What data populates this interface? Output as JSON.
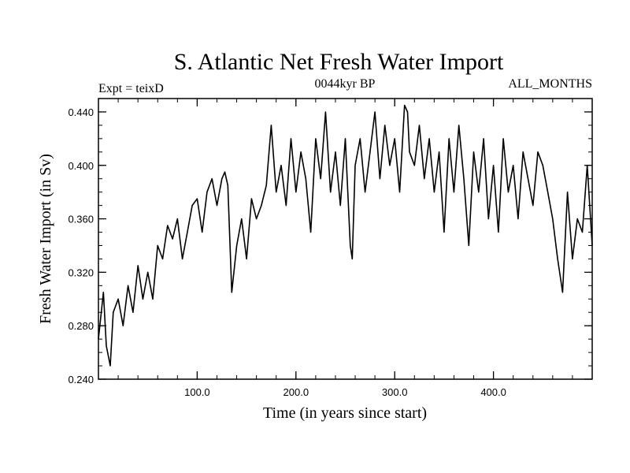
{
  "chart_data": {
    "type": "line",
    "title": "S. Atlantic Net Fresh Water Import",
    "subtitle_left": "Expt = teixD",
    "subtitle_center": "0044kyr BP",
    "subtitle_right": "ALL_MONTHS",
    "xlabel": "Time (in years since start)",
    "ylabel": "Fresh Water Import (in Sv)",
    "xlim": [
      0,
      500
    ],
    "ylim": [
      0.24,
      0.45
    ],
    "x_ticks": [
      100,
      200,
      300,
      400
    ],
    "x_tick_labels": [
      "100.0",
      "200.0",
      "300.0",
      "400.0"
    ],
    "y_ticks": [
      0.24,
      0.28,
      0.32,
      0.36,
      0.4,
      0.44
    ],
    "y_tick_labels": [
      "0.240",
      "0.280",
      "0.320",
      "0.360",
      "0.400",
      "0.440"
    ],
    "x_minor_step": 20,
    "y_minor_step": 0.01,
    "line_color": "#000000",
    "series": [
      {
        "name": "Net Fresh Water Import",
        "x": [
          0,
          5,
          8,
          12,
          15,
          20,
          25,
          30,
          35,
          40,
          45,
          50,
          55,
          60,
          65,
          70,
          75,
          80,
          85,
          90,
          95,
          100,
          105,
          110,
          115,
          120,
          125,
          128,
          131,
          135,
          140,
          145,
          150,
          155,
          160,
          165,
          170,
          175,
          180,
          185,
          190,
          195,
          200,
          205,
          210,
          215,
          220,
          225,
          230,
          235,
          240,
          245,
          250,
          255,
          257,
          260,
          265,
          270,
          275,
          280,
          285,
          290,
          295,
          300,
          305,
          310,
          313,
          315,
          320,
          325,
          330,
          335,
          340,
          345,
          350,
          355,
          360,
          365,
          370,
          375,
          380,
          385,
          390,
          395,
          400,
          405,
          410,
          415,
          420,
          425,
          430,
          435,
          440,
          445,
          450,
          455,
          460,
          465,
          470,
          475,
          480,
          485,
          490,
          495,
          500
        ],
        "values": [
          0.27,
          0.305,
          0.265,
          0.25,
          0.29,
          0.3,
          0.28,
          0.31,
          0.29,
          0.325,
          0.3,
          0.32,
          0.3,
          0.34,
          0.33,
          0.355,
          0.345,
          0.36,
          0.33,
          0.35,
          0.37,
          0.375,
          0.35,
          0.38,
          0.39,
          0.37,
          0.39,
          0.395,
          0.385,
          0.305,
          0.34,
          0.36,
          0.33,
          0.375,
          0.36,
          0.37,
          0.385,
          0.43,
          0.38,
          0.4,
          0.37,
          0.42,
          0.38,
          0.41,
          0.39,
          0.35,
          0.42,
          0.39,
          0.44,
          0.38,
          0.41,
          0.37,
          0.42,
          0.34,
          0.33,
          0.4,
          0.42,
          0.38,
          0.41,
          0.44,
          0.39,
          0.43,
          0.4,
          0.42,
          0.38,
          0.445,
          0.44,
          0.41,
          0.4,
          0.43,
          0.39,
          0.42,
          0.38,
          0.41,
          0.35,
          0.42,
          0.38,
          0.43,
          0.39,
          0.34,
          0.41,
          0.38,
          0.42,
          0.36,
          0.4,
          0.35,
          0.42,
          0.38,
          0.4,
          0.36,
          0.41,
          0.39,
          0.37,
          0.41,
          0.4,
          0.38,
          0.36,
          0.33,
          0.305,
          0.38,
          0.33,
          0.36,
          0.35,
          0.4,
          0.34
        ]
      }
    ]
  }
}
